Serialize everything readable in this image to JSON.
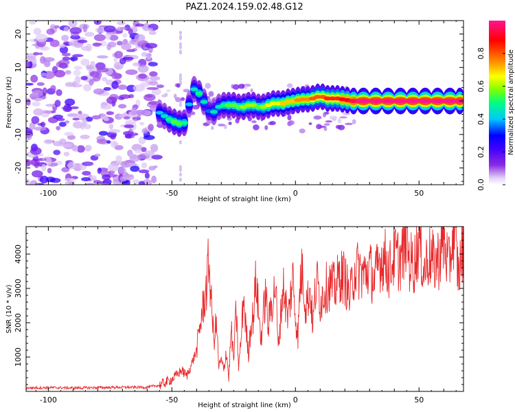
{
  "figure": {
    "title": "PAZ1.2024.159.02.48.G12"
  },
  "chart_data": [
    {
      "type": "heatmap",
      "title": "PAZ1.2024.159.02.48.G12",
      "xlabel": "Height of straight line (km)",
      "ylabel": "Frequency (Hz)",
      "xlim": [
        -109,
        68
      ],
      "ylim": [
        -25,
        24
      ],
      "xticks": [
        -100,
        -50,
        0,
        50
      ],
      "yticks": [
        -20,
        -10,
        0,
        10,
        20
      ],
      "grid": false,
      "colorbar": {
        "label": "Normalized spectral amplitude",
        "range": [
          0,
          1
        ],
        "ticks": [
          "0.0",
          "0.2",
          "0.4",
          "0.6",
          "0.8"
        ],
        "colormap": [
          "#ffffff",
          "#e3d3f7",
          "#8a2be2",
          "#4000ff",
          "#0000ff",
          "#00c8ff",
          "#00ff80",
          "#80ff00",
          "#ffff00",
          "#ff8000",
          "#ff0000",
          "#ff1493"
        ]
      },
      "ridge": [
        {
          "x": -56,
          "f": -3.0,
          "a": 0.35
        },
        {
          "x": -54,
          "f": -4.0,
          "a": 0.4
        },
        {
          "x": -52,
          "f": -5.0,
          "a": 0.45
        },
        {
          "x": -50,
          "f": -6.0,
          "a": 0.5
        },
        {
          "x": -48,
          "f": -6.5,
          "a": 0.5
        },
        {
          "x": -46,
          "f": -7.0,
          "a": 0.45
        },
        {
          "x": -44,
          "f": -6.0,
          "a": 0.35
        },
        {
          "x": -42,
          "f": 4.0,
          "a": 0.4
        },
        {
          "x": -40,
          "f": 3.0,
          "a": 0.45
        },
        {
          "x": -38,
          "f": 1.5,
          "a": 0.4
        },
        {
          "x": -36,
          "f": -2.0,
          "a": 0.3
        },
        {
          "x": -34,
          "f": -4.0,
          "a": 0.4
        },
        {
          "x": -32,
          "f": -2.5,
          "a": 0.4
        },
        {
          "x": -30,
          "f": -1.0,
          "a": 0.45
        },
        {
          "x": -28,
          "f": -1.5,
          "a": 0.5
        },
        {
          "x": -26,
          "f": -1.0,
          "a": 0.5
        },
        {
          "x": -24,
          "f": -1.5,
          "a": 0.5
        },
        {
          "x": -22,
          "f": -2.0,
          "a": 0.55
        },
        {
          "x": -20,
          "f": -1.5,
          "a": 0.55
        },
        {
          "x": -18,
          "f": -1.0,
          "a": 0.55
        },
        {
          "x": -16,
          "f": -1.5,
          "a": 0.5
        },
        {
          "x": -14,
          "f": -2.0,
          "a": 0.55
        },
        {
          "x": -12,
          "f": -1.5,
          "a": 0.6
        },
        {
          "x": -10,
          "f": -1.0,
          "a": 0.6
        },
        {
          "x": -8,
          "f": -0.5,
          "a": 0.6
        },
        {
          "x": -6,
          "f": -1.0,
          "a": 0.65
        },
        {
          "x": -4,
          "f": -0.5,
          "a": 0.65
        },
        {
          "x": -2,
          "f": 0.0,
          "a": 0.65
        },
        {
          "x": 0,
          "f": 0.0,
          "a": 0.7
        },
        {
          "x": 2,
          "f": 0.5,
          "a": 0.7
        },
        {
          "x": 4,
          "f": 0.5,
          "a": 0.7
        },
        {
          "x": 6,
          "f": 0.5,
          "a": 0.75
        },
        {
          "x": 8,
          "f": 1.0,
          "a": 0.75
        },
        {
          "x": 10,
          "f": 1.5,
          "a": 0.75
        },
        {
          "x": 12,
          "f": 1.0,
          "a": 0.8
        },
        {
          "x": 14,
          "f": 0.5,
          "a": 0.8
        },
        {
          "x": 16,
          "f": 1.0,
          "a": 0.8
        },
        {
          "x": 18,
          "f": 0.5,
          "a": 0.85
        },
        {
          "x": 20,
          "f": 0.5,
          "a": 0.85
        },
        {
          "x": 22,
          "f": 0.0,
          "a": 0.9
        },
        {
          "x": 25,
          "f": 0.0,
          "a": 0.95
        },
        {
          "x": 30,
          "f": 0.0,
          "a": 0.95
        },
        {
          "x": 35,
          "f": 0.0,
          "a": 0.95
        },
        {
          "x": 40,
          "f": 0.0,
          "a": 0.95
        },
        {
          "x": 45,
          "f": 0.0,
          "a": 0.95
        },
        {
          "x": 50,
          "f": 0.0,
          "a": 0.95
        },
        {
          "x": 55,
          "f": 0.0,
          "a": 0.95
        },
        {
          "x": 60,
          "f": 0.0,
          "a": 0.95
        },
        {
          "x": 65,
          "f": 0.0,
          "a": 0.95
        },
        {
          "x": 68,
          "f": 0.0,
          "a": 0.95
        }
      ]
    },
    {
      "type": "line",
      "xlabel": "Height of straight line (km)",
      "ylabel": "SNR (10 * v/v)",
      "xlim": [
        -109,
        68
      ],
      "ylim": [
        0,
        4800
      ],
      "xticks": [
        -100,
        -50,
        0,
        50
      ],
      "yticks": [
        1000,
        2000,
        3000,
        4000
      ],
      "grid": false,
      "line_color": "#e8282b",
      "x": [
        -109,
        -100,
        -90,
        -80,
        -70,
        -60,
        -55,
        -50,
        -48,
        -46,
        -44,
        -42,
        -40,
        -38,
        -36,
        -35,
        -34,
        -33,
        -32,
        -31,
        -30,
        -29,
        -28,
        -27,
        -26,
        -25,
        -24,
        -23,
        -22,
        -21,
        -20,
        -19,
        -18,
        -17,
        -16,
        -15,
        -14,
        -13,
        -12,
        -11,
        -10,
        -9,
        -8,
        -7,
        -6,
        -5,
        -4,
        -3,
        -2,
        -1,
        0,
        1,
        2,
        3,
        4,
        5,
        6,
        7,
        8,
        9,
        10,
        12,
        14,
        16,
        18,
        20,
        22,
        24,
        26,
        28,
        30,
        32,
        34,
        36,
        38,
        40,
        42,
        44,
        45,
        46,
        48,
        50,
        52,
        54,
        56,
        58,
        60,
        62,
        64,
        66,
        68
      ],
      "y": [
        100,
        110,
        100,
        110,
        120,
        120,
        180,
        350,
        480,
        620,
        450,
        800,
        1200,
        2200,
        3000,
        3850,
        2500,
        1500,
        2000,
        700,
        900,
        600,
        1200,
        400,
        1800,
        900,
        2400,
        700,
        1500,
        2800,
        1800,
        1100,
        2000,
        2200,
        3300,
        2400,
        1500,
        2200,
        2900,
        1800,
        2500,
        2700,
        3200,
        1200,
        2200,
        3100,
        2600,
        2100,
        2800,
        3300,
        2200,
        1600,
        3300,
        3500,
        2500,
        2700,
        3000,
        1900,
        2900,
        3200,
        2600,
        3000,
        3100,
        3000,
        3400,
        3300,
        2700,
        3600,
        3500,
        3400,
        3600,
        3200,
        3800,
        3900,
        3500,
        4000,
        3800,
        4100,
        4800,
        3800,
        3700,
        4400,
        3500,
        4000,
        3700,
        3900,
        4400,
        3600,
        4700,
        3400,
        4300
      ]
    }
  ]
}
